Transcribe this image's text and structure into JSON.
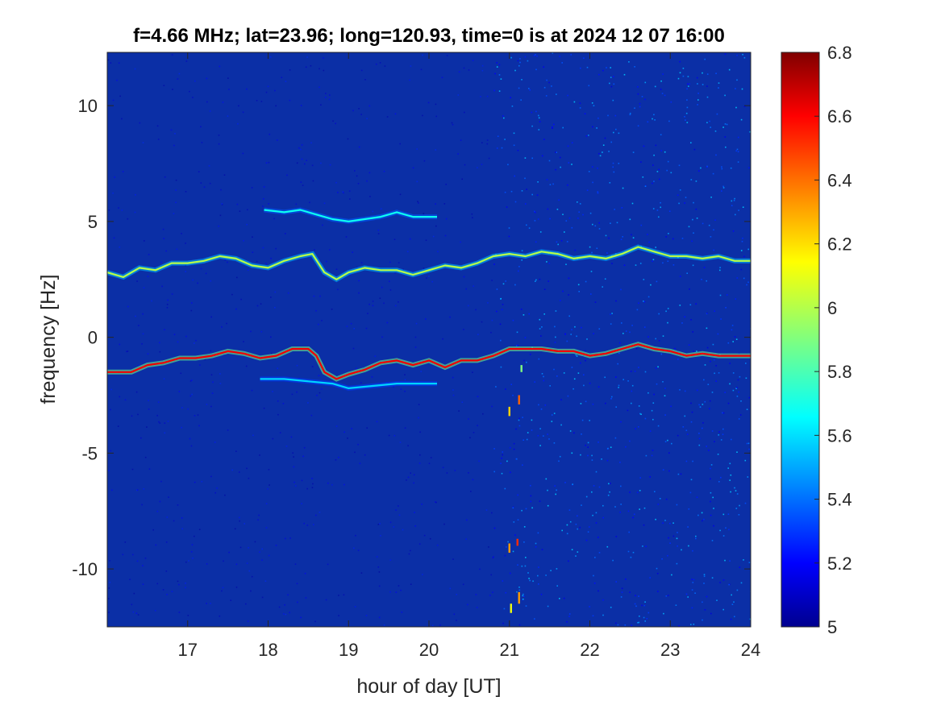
{
  "chart_data": {
    "type": "heatmap",
    "title": "f=4.66 MHz;  lat=23.96; long=120.93, time=0 is at 2024 12 07 16:00",
    "xlabel": "hour of day [UT]",
    "ylabel": "frequency [Hz]",
    "xlim": [
      16,
      24
    ],
    "ylim": [
      -12.5,
      12.3
    ],
    "xticks": [
      17,
      18,
      19,
      20,
      21,
      22,
      23,
      24
    ],
    "yticks": [
      10,
      5,
      0,
      -5,
      -10
    ],
    "colorbar": {
      "range": [
        5,
        6.8
      ],
      "ticks": [
        6.8,
        6.6,
        6.4,
        6.2,
        6,
        5.8,
        5.6,
        5.4,
        5.2,
        5
      ],
      "colormap": "jet",
      "placement": "right"
    },
    "background_color": "#0b2fa6",
    "traces": [
      {
        "name": "negative-doppler",
        "intensity": 6.6,
        "points": [
          [
            16.0,
            -1.5
          ],
          [
            16.3,
            -1.5
          ],
          [
            16.5,
            -1.2
          ],
          [
            16.7,
            -1.1
          ],
          [
            16.9,
            -0.9
          ],
          [
            17.1,
            -0.9
          ],
          [
            17.3,
            -0.8
          ],
          [
            17.5,
            -0.6
          ],
          [
            17.7,
            -0.7
          ],
          [
            17.9,
            -0.9
          ],
          [
            18.1,
            -0.8
          ],
          [
            18.3,
            -0.5
          ],
          [
            18.5,
            -0.5
          ],
          [
            18.6,
            -0.8
          ],
          [
            18.7,
            -1.5
          ],
          [
            18.85,
            -1.8
          ],
          [
            19.0,
            -1.6
          ],
          [
            19.2,
            -1.4
          ],
          [
            19.4,
            -1.1
          ],
          [
            19.6,
            -1.0
          ],
          [
            19.8,
            -1.2
          ],
          [
            20.0,
            -1.0
          ],
          [
            20.2,
            -1.3
          ],
          [
            20.4,
            -1.0
          ],
          [
            20.6,
            -1.0
          ],
          [
            20.8,
            -0.8
          ],
          [
            21.0,
            -0.5
          ],
          [
            21.2,
            -0.5
          ],
          [
            21.4,
            -0.5
          ],
          [
            21.6,
            -0.6
          ],
          [
            21.8,
            -0.6
          ],
          [
            22.0,
            -0.8
          ],
          [
            22.2,
            -0.7
          ],
          [
            22.4,
            -0.5
          ],
          [
            22.6,
            -0.3
          ],
          [
            22.8,
            -0.5
          ],
          [
            23.0,
            -0.6
          ],
          [
            23.2,
            -0.8
          ],
          [
            23.4,
            -0.7
          ],
          [
            23.6,
            -0.8
          ],
          [
            23.8,
            -0.8
          ],
          [
            24.0,
            -0.8
          ]
        ]
      },
      {
        "name": "positive-doppler",
        "intensity": 6.0,
        "points": [
          [
            16.0,
            2.8
          ],
          [
            16.2,
            2.6
          ],
          [
            16.4,
            3.0
          ],
          [
            16.6,
            2.9
          ],
          [
            16.8,
            3.2
          ],
          [
            17.0,
            3.2
          ],
          [
            17.2,
            3.3
          ],
          [
            17.4,
            3.5
          ],
          [
            17.6,
            3.4
          ],
          [
            17.8,
            3.1
          ],
          [
            18.0,
            3.0
          ],
          [
            18.2,
            3.3
          ],
          [
            18.4,
            3.5
          ],
          [
            18.55,
            3.6
          ],
          [
            18.7,
            2.8
          ],
          [
            18.85,
            2.5
          ],
          [
            19.0,
            2.8
          ],
          [
            19.2,
            3.0
          ],
          [
            19.4,
            2.9
          ],
          [
            19.6,
            2.9
          ],
          [
            19.8,
            2.7
          ],
          [
            20.0,
            2.9
          ],
          [
            20.2,
            3.1
          ],
          [
            20.4,
            3.0
          ],
          [
            20.6,
            3.2
          ],
          [
            20.8,
            3.5
          ],
          [
            21.0,
            3.6
          ],
          [
            21.2,
            3.5
          ],
          [
            21.4,
            3.7
          ],
          [
            21.6,
            3.6
          ],
          [
            21.8,
            3.4
          ],
          [
            22.0,
            3.5
          ],
          [
            22.2,
            3.4
          ],
          [
            22.4,
            3.6
          ],
          [
            22.6,
            3.9
          ],
          [
            22.8,
            3.7
          ],
          [
            23.0,
            3.5
          ],
          [
            23.2,
            3.5
          ],
          [
            23.4,
            3.4
          ],
          [
            23.6,
            3.5
          ],
          [
            23.8,
            3.3
          ],
          [
            24.0,
            3.3
          ]
        ]
      },
      {
        "name": "upper-weak",
        "intensity": 5.7,
        "points": [
          [
            17.95,
            5.5
          ],
          [
            18.2,
            5.4
          ],
          [
            18.4,
            5.5
          ],
          [
            18.6,
            5.3
          ],
          [
            18.8,
            5.1
          ],
          [
            19.0,
            5.0
          ],
          [
            19.2,
            5.1
          ],
          [
            19.4,
            5.2
          ],
          [
            19.6,
            5.4
          ],
          [
            19.8,
            5.2
          ],
          [
            20.1,
            5.2
          ]
        ]
      },
      {
        "name": "lower-weak",
        "intensity": 5.6,
        "points": [
          [
            17.9,
            -1.8
          ],
          [
            18.2,
            -1.8
          ],
          [
            18.5,
            -1.9
          ],
          [
            18.8,
            -2.0
          ],
          [
            19.0,
            -2.2
          ],
          [
            19.3,
            -2.1
          ],
          [
            19.6,
            -2.0
          ],
          [
            19.9,
            -2.0
          ],
          [
            20.1,
            -2.0
          ]
        ]
      }
    ],
    "noise_boundary_hour": 20.8,
    "spikes": [
      {
        "x": 21.0,
        "y0": -3.4,
        "y1": -3.0,
        "intensity": 6.2
      },
      {
        "x": 21.12,
        "y0": -2.9,
        "y1": -2.5,
        "intensity": 6.4
      },
      {
        "x": 21.0,
        "y0": -9.3,
        "y1": -8.9,
        "intensity": 6.3
      },
      {
        "x": 21.1,
        "y0": -9.0,
        "y1": -8.7,
        "intensity": 6.5
      },
      {
        "x": 21.02,
        "y0": -11.9,
        "y1": -11.5,
        "intensity": 6.1
      },
      {
        "x": 21.12,
        "y0": -11.5,
        "y1": -11.0,
        "intensity": 6.3
      },
      {
        "x": 21.15,
        "y0": -1.5,
        "y1": -1.2,
        "intensity": 5.9
      }
    ]
  }
}
